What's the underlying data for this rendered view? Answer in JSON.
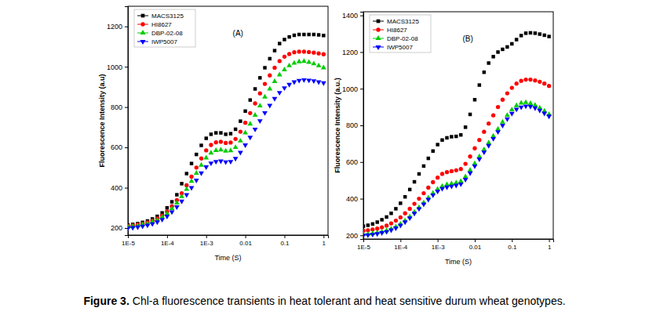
{
  "chart_data": [
    {
      "type": "scatter",
      "title": "(A)",
      "x_label": "Time (S)",
      "y_label": "Fluorescence Intensity (a.u)",
      "log": "x",
      "grid": false,
      "legend": "upper left",
      "x": [
        1e-05,
        1.33e-05,
        1.78e-05,
        2.37e-05,
        3.16e-05,
        4.22e-05,
        5.62e-05,
        7.5e-05,
        0.0001,
        0.000133,
        0.000178,
        0.000237,
        0.000316,
        0.000422,
        0.000562,
        0.00075,
        0.001,
        0.00133,
        0.00178,
        0.00237,
        0.00316,
        0.00422,
        0.00562,
        0.0075,
        0.01,
        0.0133,
        0.0178,
        0.0237,
        0.0316,
        0.0422,
        0.0562,
        0.075,
        0.1,
        0.133,
        0.178,
        0.237,
        0.316,
        0.422,
        0.562,
        0.75,
        1
      ],
      "xlim": [
        1e-05,
        1.3
      ],
      "xticks": [
        {
          "value": 1e-05,
          "label": "1E-5"
        },
        {
          "value": 0.0001,
          "label": "1E-4"
        },
        {
          "value": 0.001,
          "label": "1E-3"
        },
        0.01,
        0.1,
        1
      ],
      "ylim": [
        165,
        1300
      ],
      "yticks": [
        200,
        400,
        600,
        800,
        1000,
        1200
      ],
      "series": [
        {
          "name": "MACS3125",
          "color": "#000000",
          "marker": "square",
          "values": [
            215,
            218,
            222,
            228,
            235,
            245,
            258,
            275,
            300,
            330,
            365,
            420,
            470,
            520,
            565,
            610,
            645,
            665,
            672,
            672,
            665,
            668,
            690,
            730,
            780,
            835,
            890,
            945,
            995,
            1040,
            1080,
            1115,
            1135,
            1148,
            1156,
            1160,
            1160,
            1160,
            1160,
            1158,
            1155
          ]
        },
        {
          "name": "HI8627",
          "color": "#ff0000",
          "marker": "circle",
          "values": [
            210,
            213,
            217,
            222,
            228,
            236,
            247,
            262,
            282,
            308,
            338,
            372,
            412,
            455,
            500,
            545,
            585,
            612,
            625,
            628,
            622,
            624,
            642,
            678,
            722,
            770,
            818,
            868,
            915,
            957,
            995,
            1028,
            1050,
            1063,
            1072,
            1075,
            1075,
            1073,
            1070,
            1066,
            1062
          ]
        },
        {
          "name": "DBP-02-08",
          "color": "#00cc00",
          "marker": "triangle-up",
          "values": [
            205,
            208,
            212,
            217,
            222,
            230,
            240,
            254,
            272,
            296,
            324,
            356,
            392,
            432,
            472,
            512,
            548,
            572,
            585,
            588,
            582,
            584,
            600,
            632,
            672,
            716,
            760,
            806,
            850,
            890,
            927,
            960,
            985,
            1005,
            1018,
            1025,
            1027,
            1022,
            1015,
            1005,
            995
          ]
        },
        {
          "name": "IWP5007",
          "color": "#0000ff",
          "marker": "triangle-down",
          "values": [
            200,
            202,
            205,
            209,
            214,
            221,
            230,
            242,
            258,
            280,
            305,
            333,
            365,
            400,
            437,
            473,
            503,
            522,
            530,
            532,
            528,
            530,
            545,
            575,
            612,
            650,
            690,
            732,
            772,
            808,
            842,
            872,
            895,
            912,
            925,
            932,
            935,
            933,
            930,
            925,
            920
          ]
        }
      ]
    },
    {
      "type": "scatter",
      "title": "(B)",
      "x_label": "Time (S)",
      "y_label": "Fluorescence Intensity (a.u.)",
      "log": "x",
      "grid": false,
      "legend": "upper left",
      "x": [
        1e-05,
        1.33e-05,
        1.78e-05,
        2.37e-05,
        3.16e-05,
        4.22e-05,
        5.62e-05,
        7.5e-05,
        0.0001,
        0.000133,
        0.000178,
        0.000237,
        0.000316,
        0.000422,
        0.000562,
        0.00075,
        0.001,
        0.00133,
        0.00178,
        0.00237,
        0.00316,
        0.00422,
        0.00562,
        0.0075,
        0.01,
        0.0133,
        0.0178,
        0.0237,
        0.0316,
        0.0422,
        0.0562,
        0.075,
        0.1,
        0.133,
        0.178,
        0.237,
        0.316,
        0.422,
        0.562,
        0.75,
        1
      ],
      "xlim": [
        1e-05,
        1.3
      ],
      "xticks": [
        {
          "value": 1e-05,
          "label": "1E-5"
        },
        {
          "value": 0.0001,
          "label": "1E-4"
        },
        {
          "value": 0.001,
          "label": "1E-3"
        },
        0.01,
        0.1,
        1
      ],
      "ylim": [
        180,
        1420
      ],
      "yticks": [
        200,
        400,
        600,
        800,
        1000,
        1200,
        1400
      ],
      "series": [
        {
          "name": "MACS3125",
          "color": "#000000",
          "marker": "square",
          "values": [
            250,
            255,
            262,
            272,
            285,
            300,
            320,
            345,
            375,
            410,
            450,
            492,
            535,
            578,
            620,
            660,
            695,
            720,
            732,
            738,
            740,
            748,
            790,
            860,
            940,
            1020,
            1090,
            1140,
            1175,
            1200,
            1215,
            1228,
            1245,
            1268,
            1290,
            1303,
            1305,
            1303,
            1298,
            1292,
            1285
          ]
        },
        {
          "name": "HI8627",
          "color": "#ff0000",
          "marker": "circle",
          "values": [
            225,
            228,
            232,
            237,
            244,
            253,
            265,
            280,
            298,
            320,
            345,
            372,
            400,
            430,
            460,
            490,
            515,
            535,
            545,
            550,
            555,
            562,
            590,
            630,
            675,
            720,
            765,
            810,
            855,
            900,
            940,
            975,
            1005,
            1028,
            1043,
            1050,
            1050,
            1045,
            1038,
            1028,
            1015
          ]
        },
        {
          "name": "DBP-02-08",
          "color": "#00cc00",
          "marker": "triangle-up",
          "values": [
            205,
            207,
            210,
            214,
            219,
            226,
            235,
            247,
            262,
            280,
            302,
            327,
            352,
            378,
            405,
            430,
            452,
            468,
            477,
            482,
            487,
            495,
            520,
            555,
            592,
            630,
            668,
            705,
            742,
            780,
            818,
            855,
            885,
            908,
            922,
            925,
            920,
            910,
            895,
            878,
            860
          ]
        },
        {
          "name": "IWP5007",
          "color": "#0000ff",
          "marker": "triangle-down",
          "values": [
            200,
            202,
            205,
            209,
            214,
            220,
            229,
            240,
            255,
            273,
            295,
            320,
            345,
            370,
            396,
            420,
            440,
            455,
            463,
            468,
            473,
            480,
            505,
            540,
            578,
            616,
            654,
            690,
            728,
            765,
            800,
            835,
            865,
            888,
            900,
            905,
            903,
            895,
            882,
            866,
            850
          ]
        }
      ]
    }
  ],
  "figure_label": "Figure 3.",
  "caption": "Chl-a fluorescence transients in heat tolerant and heat sensitive durum wheat genotypes."
}
